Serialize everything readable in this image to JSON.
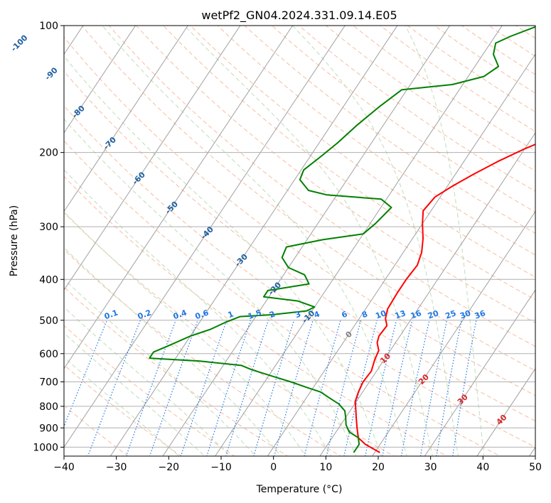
{
  "chart_data": {
    "type": "line",
    "title": "wetPf2_GN04.2024.331.09.14.E05",
    "xlabel": "Temperature (°C)",
    "ylabel": "Pressure (hPa)",
    "xlim": [
      -40,
      50
    ],
    "ylim": [
      1050,
      100
    ],
    "y_scale": "log",
    "grid": true,
    "x_ticks": [
      -40,
      -30,
      -20,
      -10,
      0,
      10,
      20,
      30,
      40,
      50
    ],
    "x_tick_labels": [
      "−40",
      "−30",
      "−20",
      "−10",
      "0",
      "10",
      "20",
      "30",
      "40",
      "50"
    ],
    "y_ticks": [
      100,
      200,
      300,
      400,
      500,
      600,
      700,
      800,
      900,
      1000
    ],
    "y_tick_labels": [
      "100",
      "200",
      "300",
      "400",
      "500",
      "600",
      "700",
      "800",
      "900",
      "1000"
    ],
    "colors": {
      "temperature": "#ff0000",
      "dewpoint": "#008000",
      "isotherm": "#a0a0a0",
      "dry_adiabat": "#f4a582",
      "moist_adiabat": "#b8d9b0",
      "mixing_ratio": "#1f77e4",
      "isotherm_label": "#1f5f9f",
      "warm_label": "#d62728",
      "zero_label": "#808080"
    },
    "series": [
      {
        "name": "",
        "role": "temperature",
        "points": [
          [
            21.0,
            1030
          ],
          [
            17.2,
            985
          ],
          [
            15.0,
            950
          ],
          [
            13.5,
            900
          ],
          [
            12.0,
            850
          ],
          [
            10.8,
            810
          ],
          [
            9.8,
            780
          ],
          [
            9.2,
            740
          ],
          [
            8.8,
            700
          ],
          [
            9.0,
            660
          ],
          [
            8.2,
            620
          ],
          [
            7.8,
            590
          ],
          [
            6.5,
            565
          ],
          [
            6.0,
            545
          ],
          [
            6.2,
            515
          ],
          [
            5.0,
            495
          ],
          [
            4.2,
            470
          ],
          [
            4.0,
            430
          ],
          [
            4.0,
            400
          ],
          [
            4.3,
            370
          ],
          [
            3.5,
            345
          ],
          [
            2.0,
            320
          ],
          [
            0.0,
            295
          ],
          [
            -1.5,
            275
          ],
          [
            -1.0,
            255
          ],
          [
            1.0,
            240
          ],
          [
            3.5,
            225
          ],
          [
            6.5,
            210
          ],
          [
            10.0,
            196
          ],
          [
            13.5,
            185
          ],
          [
            15.0,
            175
          ],
          [
            16.5,
            160
          ],
          [
            17.5,
            145
          ],
          [
            17.0,
            130
          ],
          [
            16.5,
            120
          ],
          [
            17.5,
            113
          ],
          [
            19.0,
            107
          ],
          [
            19.5,
            100
          ]
        ]
      },
      {
        "name": "",
        "role": "dewpoint",
        "points": [
          [
            16.0,
            1030
          ],
          [
            16.0,
            985
          ],
          [
            15.0,
            950
          ],
          [
            12.5,
            920
          ],
          [
            11.0,
            885
          ],
          [
            10.0,
            850
          ],
          [
            9.0,
            820
          ],
          [
            7.0,
            790
          ],
          [
            4.0,
            760
          ],
          [
            2.0,
            740
          ],
          [
            -1.5,
            720
          ],
          [
            -5.0,
            700
          ],
          [
            -10.0,
            675
          ],
          [
            -14.0,
            655
          ],
          [
            -16.5,
            640
          ],
          [
            -25.0,
            625
          ],
          [
            -35.0,
            615
          ],
          [
            -35.0,
            595
          ],
          [
            -33.0,
            575
          ],
          [
            -30.0,
            545
          ],
          [
            -27.0,
            525
          ],
          [
            -25.0,
            505
          ],
          [
            -23.0,
            490
          ],
          [
            -17.0,
            485
          ],
          [
            -11.0,
            475
          ],
          [
            -10.0,
            465
          ],
          [
            -14.0,
            450
          ],
          [
            -21.0,
            440
          ],
          [
            -21.0,
            425
          ],
          [
            -14.0,
            410
          ],
          [
            -16.0,
            390
          ],
          [
            -20.0,
            375
          ],
          [
            -22.5,
            355
          ],
          [
            -23.0,
            335
          ],
          [
            -17.0,
            322
          ],
          [
            -10.0,
            312
          ],
          [
            -9.0,
            295
          ],
          [
            -8.0,
            270
          ],
          [
            -11.0,
            258
          ],
          [
            -22.0,
            252
          ],
          [
            -26.0,
            246
          ],
          [
            -29.0,
            232
          ],
          [
            -29.5,
            220
          ],
          [
            -28.0,
            205
          ],
          [
            -26.5,
            190
          ],
          [
            -25.0,
            172
          ],
          [
            -23.0,
            155
          ],
          [
            -21.0,
            142
          ],
          [
            -12.0,
            138
          ],
          [
            -7.0,
            132
          ],
          [
            -5.5,
            125
          ],
          [
            -8.0,
            117
          ],
          [
            -9.0,
            110
          ],
          [
            -7.0,
            106
          ],
          [
            -3.0,
            100
          ]
        ]
      }
    ],
    "isotherm_labels": [
      "-100",
      "-90",
      "-80",
      "-70",
      "-60",
      "-50",
      "-40",
      "-30",
      "-20",
      "-10",
      "0",
      "10",
      "20",
      "30",
      "40"
    ],
    "mixing_ratio_labels": [
      "0.1",
      "0.2",
      "0.4",
      "0.6",
      "1",
      "1.5",
      "2",
      "3",
      "4",
      "6",
      "8",
      "10",
      "13",
      "16",
      "20",
      "25",
      "30",
      "36"
    ]
  }
}
